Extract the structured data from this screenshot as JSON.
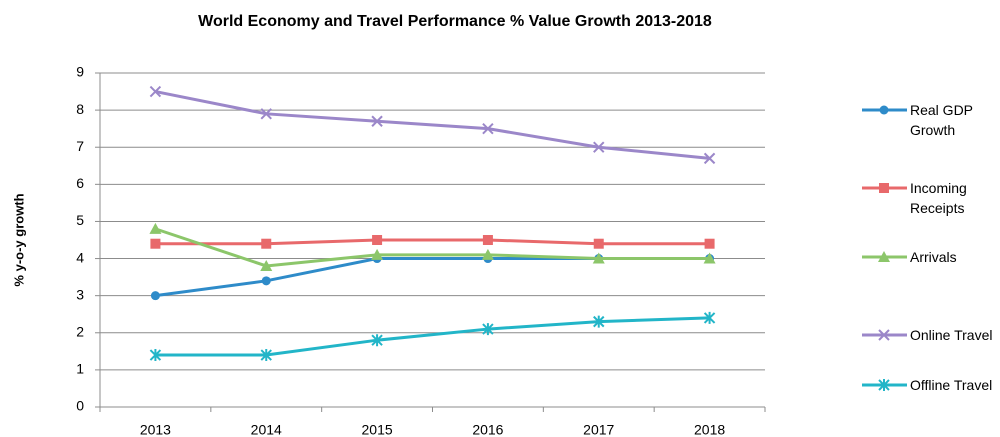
{
  "chart_data": {
    "type": "line",
    "title": "World Economy and Travel Performance % Value Growth 2013-2018",
    "y_label": "% y-o-y growth",
    "categories": [
      "2013",
      "2014",
      "2015",
      "2016",
      "2017",
      "2018"
    ],
    "series": [
      {
        "name": "Real GDP Growth",
        "color": "#2e8bc9",
        "marker": "circle",
        "values": [
          3.0,
          3.4,
          4.0,
          4.0,
          4.0,
          4.0
        ]
      },
      {
        "name": "Incoming Receipts",
        "color": "#e8696b",
        "marker": "square",
        "values": [
          4.4,
          4.4,
          4.5,
          4.5,
          4.4,
          4.4
        ]
      },
      {
        "name": "Arrivals",
        "color": "#8cc66a",
        "marker": "triangle",
        "values": [
          4.8,
          3.8,
          4.1,
          4.1,
          4.0,
          4.0
        ]
      },
      {
        "name": "Online Travel",
        "color": "#9b87c9",
        "marker": "x",
        "values": [
          8.5,
          7.9,
          7.7,
          7.5,
          7.0,
          6.7
        ]
      },
      {
        "name": "Offline Travel",
        "color": "#22b5c8",
        "marker": "asterisk",
        "values": [
          1.4,
          1.4,
          1.8,
          2.1,
          2.3,
          2.4
        ]
      }
    ],
    "ylim": [
      0,
      9
    ],
    "yticks": [
      0,
      1,
      2,
      3,
      4,
      5,
      6,
      7,
      8,
      9
    ],
    "grid": true,
    "legend": "right"
  }
}
